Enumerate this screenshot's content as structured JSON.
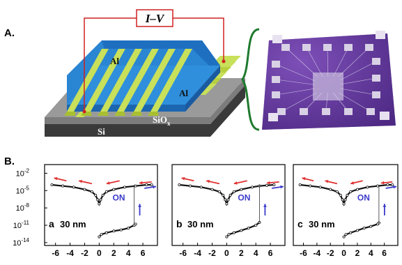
{
  "figure": {
    "panel_a_label": "A.",
    "panel_b_label": "B.",
    "iv_box_label": "I–V",
    "layer_labels": {
      "al_top": "Al",
      "al_right": "Al",
      "siox_base": "SiO",
      "siox_sub": "x",
      "si": "Si"
    },
    "colors": {
      "electrode": "#c8e05a",
      "blue_layer": "#2f8fdc",
      "siox": "#8a8a8a",
      "si": "#3a3a3a",
      "wire": "#d02020",
      "brace": "#1e7a2e",
      "chip": "#6a3fa0",
      "arrow_red": "#e03030",
      "arrow_blue": "#3a3acb",
      "on_text": "#3a3acb"
    }
  },
  "chart_data": [
    {
      "type": "line",
      "panel_label": "a",
      "annotation": "30 nm",
      "on_label": "ON",
      "x_ticks": [
        "-6",
        "-4",
        "-2",
        "0",
        "2",
        "4",
        "6"
      ],
      "y_ticks": [
        "10^-2",
        "10^-5",
        "10^-8",
        "10^-11",
        "10^-14"
      ],
      "xlim": [
        -7.5,
        8
      ],
      "ylim_log10": [
        -14.5,
        -0.5
      ],
      "series": [
        {
          "x": [
            -6.5,
            -5,
            -3.5,
            -2,
            -1,
            -0.5,
            -0.2,
            0,
            0.2,
            0.5,
            1,
            2,
            3.5,
            5,
            6.5,
            7.2
          ],
          "log10y": [
            -4,
            -4.2,
            -4.4,
            -4.8,
            -5.2,
            -5.8,
            -6.6,
            -7.3,
            -6.6,
            -5.8,
            -5.2,
            -4.8,
            -4.4,
            -4.2,
            -4,
            -4
          ]
        },
        {
          "x": [
            0,
            0.3,
            1,
            2,
            3,
            4,
            4.8,
            5
          ],
          "log10y": [
            -13,
            -12.6,
            -12.3,
            -12,
            -11.8,
            -11.5,
            -11,
            -10.8
          ]
        }
      ],
      "switch_x": 4.8
    },
    {
      "type": "line",
      "panel_label": "b",
      "annotation": "30 nm",
      "on_label": "ON",
      "x_ticks": [
        "-6",
        "-4",
        "-2",
        "0",
        "2",
        "4",
        "6"
      ],
      "xlim": [
        -7.5,
        8
      ],
      "ylim_log10": [
        -14.5,
        -0.5
      ],
      "series": [
        {
          "x": [
            -6.5,
            -5,
            -3.5,
            -2,
            -1,
            -0.5,
            -0.2,
            0,
            0.2,
            0.5,
            1,
            2,
            3.5,
            4.5,
            5.5,
            6.5
          ],
          "log10y": [
            -4,
            -4.2,
            -4.4,
            -4.8,
            -5.2,
            -5.8,
            -6.6,
            -7.3,
            -6.6,
            -5.8,
            -5.2,
            -4.8,
            -4.4,
            -4.2,
            -4.1,
            -4
          ]
        },
        {
          "x": [
            0,
            0.3,
            1,
            2,
            3,
            4,
            4.5
          ],
          "log10y": [
            -13,
            -12.6,
            -12.3,
            -11.9,
            -11.5,
            -11,
            -10.5
          ]
        }
      ],
      "switch_x": 4.5
    },
    {
      "type": "line",
      "panel_label": "c",
      "annotation": "30 nm",
      "on_label": "ON",
      "x_ticks": [
        "-6",
        "-4",
        "-2",
        "0",
        "2",
        "4",
        "6"
      ],
      "xlim": [
        -7.5,
        8
      ],
      "ylim_log10": [
        -14.5,
        -0.5
      ],
      "series": [
        {
          "x": [
            -6.5,
            -5,
            -3.5,
            -2,
            -1,
            -0.5,
            -0.2,
            0,
            0.2,
            0.5,
            1,
            2,
            3.5,
            5,
            6.5,
            7.2
          ],
          "log10y": [
            -4,
            -4.2,
            -4.4,
            -4.8,
            -5.2,
            -5.8,
            -6.6,
            -7.3,
            -6.6,
            -5.8,
            -5.2,
            -4.8,
            -4.4,
            -4.2,
            -4,
            -4
          ]
        },
        {
          "x": [
            0,
            0.3,
            1,
            2,
            3,
            4,
            5,
            5.2
          ],
          "log10y": [
            -13,
            -12.6,
            -12.3,
            -11.9,
            -11.5,
            -11.2,
            -10.8,
            -10.6
          ]
        }
      ],
      "switch_x": 5.2
    }
  ]
}
